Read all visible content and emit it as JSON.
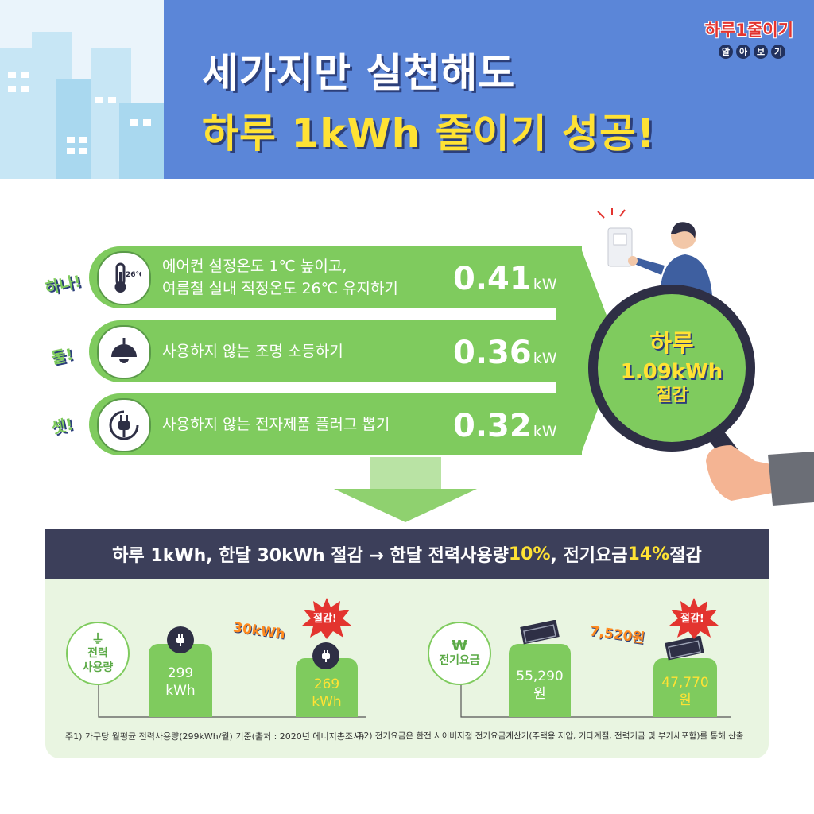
{
  "header": {
    "title_line1": "세가지만 실천해도",
    "title_line2": "하루 1kWh 줄이기 성공!",
    "logo_main": "하루1줄이기",
    "logo_sup": "kWh",
    "logo_sub": [
      "알",
      "아",
      "보",
      "기"
    ]
  },
  "tips": [
    {
      "label": "하나!",
      "icon": "thermometer-icon",
      "icon_text": "26℃",
      "line1": "에어컨 설정온도 1℃ 높이고,",
      "line2": "여름철 실내 적정온도 26℃ 유지하기",
      "value": "0.41",
      "unit": "kWh"
    },
    {
      "label": "둘!",
      "icon": "lamp-icon",
      "line1": "사용하지 않는 조명 소등하기",
      "line2": "",
      "value": "0.36",
      "unit": "kWh"
    },
    {
      "label": "셋!",
      "icon": "plug-icon",
      "line1": "사용하지 않는 전자제품 플러그 뽑기",
      "line2": "",
      "value": "0.32",
      "unit": "kWh"
    }
  ],
  "lens": {
    "line1": "하루",
    "line2": "1.09kWh",
    "line3": "절감"
  },
  "banner": {
    "part1": "하루 1kWh, 한달 30kWh 절감 → 한달 전력사용량 ",
    "hl1": "10%",
    "part2": ", 전기요금 ",
    "hl2": "14%",
    "part3": " 절감"
  },
  "power": {
    "label_line1": "전력",
    "label_line2": "사용량",
    "before_value": "299",
    "before_unit": "kWh",
    "after_value": "269",
    "after_unit": "kWh",
    "diff": "30kWh",
    "burst": "절감!"
  },
  "bill": {
    "currency_symbol": "₩",
    "label": "전기요금",
    "before_value": "55,290",
    "before_unit": "원",
    "after_value": "47,770",
    "after_unit": "원",
    "diff": "7,520원",
    "burst": "절감!"
  },
  "footnotes": {
    "note1": "주1) 가구당 월평균 전력사용량(299kWh/월) 기준(출처 : 2020년 에너지총조사)",
    "note2": "주2) 전기요금은 한전 사이버지점 전기요금계산기(주택용 저압, 기타계절, 전력기금 및 부가세포함)를 통해 산출"
  },
  "colors": {
    "header_blue": "#5b86d8",
    "green": "#7fcb5e",
    "yellow": "#ffe234",
    "navy": "#3c3f5a",
    "orange": "#ff8a1f",
    "red": "#e3342f"
  }
}
